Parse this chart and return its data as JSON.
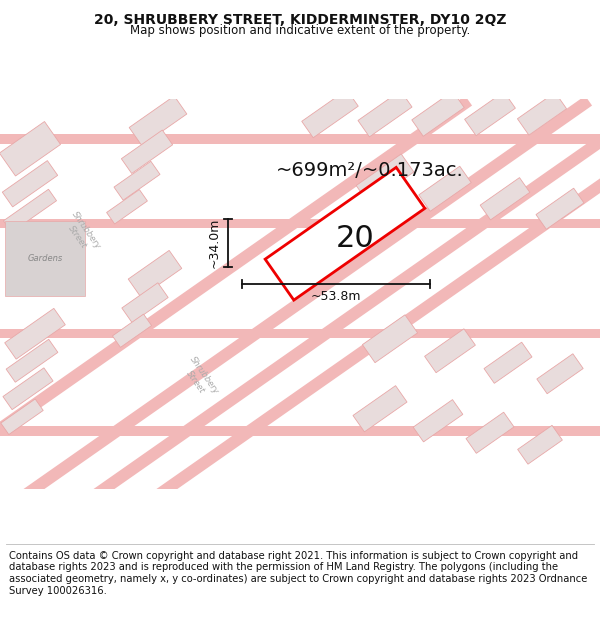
{
  "title": "20, SHRUBBERY STREET, KIDDERMINSTER, DY10 2QZ",
  "subtitle": "Map shows position and indicative extent of the property.",
  "title_fontsize": 10,
  "subtitle_fontsize": 8.5,
  "area_text": "~699m²/~0.173ac.",
  "property_number": "20",
  "dim_width": "~53.8m",
  "dim_height": "~34.0m",
  "street_label_1": "Shrubbery\nStreet",
  "street_label_2": "Shrubbery\nStreet",
  "footer_text": "Contains OS data © Crown copyright and database right 2021. This information is subject to Crown copyright and database rights 2023 and is reproduced with the permission of HM Land Registry. The polygons (including the associated geometry, namely x, y co-ordinates) are subject to Crown copyright and database rights 2023 Ordnance Survey 100026316.",
  "footer_fontsize": 7.2,
  "background_color": "#ffffff",
  "map_bg_color": "#f7f0f0",
  "road_color": "#f2b8b8",
  "building_fill": "#e8dcdc",
  "building_outline": "#e8a8a8",
  "highlight_color": "#ee0000",
  "dim_line_color": "#111111",
  "text_color": "#111111",
  "area_text_fontsize": 14,
  "number_fontsize": 22,
  "dim_fontsize": 9,
  "street_fontsize": 6
}
